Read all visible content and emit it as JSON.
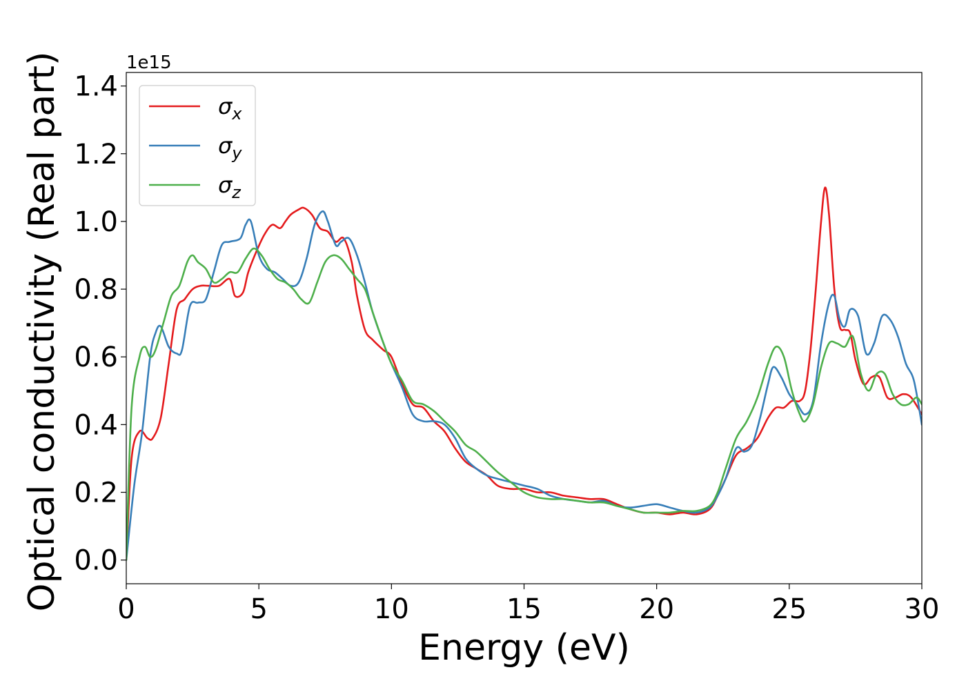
{
  "chart_data": {
    "type": "line",
    "title": "",
    "xlabel": "Energy (eV)",
    "ylabel": "Optical conductivity (Real part)",
    "y_offset_label": "1e15",
    "xlim": [
      0,
      30
    ],
    "ylim": [
      -0.07,
      1.44
    ],
    "xticks": [
      0,
      5,
      10,
      15,
      20,
      25,
      30
    ],
    "xtick_labels": [
      "0",
      "5",
      "10",
      "15",
      "20",
      "25",
      "30"
    ],
    "yticks": [
      0.0,
      0.2,
      0.4,
      0.6,
      0.8,
      1.0,
      1.2,
      1.4
    ],
    "ytick_labels": [
      "0.0",
      "0.2",
      "0.4",
      "0.6",
      "0.8",
      "1.0",
      "1.2",
      "1.4"
    ],
    "grid": false,
    "legend_position": "top-left",
    "series": [
      {
        "name": "σx",
        "base": "σ",
        "sub": "x",
        "color": "#e41a1c",
        "x": [
          0,
          0.2,
          0.5,
          0.8,
          1.0,
          1.3,
          1.6,
          1.9,
          2.2,
          2.5,
          2.8,
          3.1,
          3.5,
          3.9,
          4.1,
          4.4,
          4.6,
          4.9,
          5.2,
          5.5,
          5.8,
          6.0,
          6.2,
          6.5,
          6.7,
          7.0,
          7.3,
          7.6,
          7.9,
          8.2,
          8.5,
          8.7,
          9.0,
          9.3,
          9.7,
          10.0,
          10.4,
          10.8,
          11.2,
          11.6,
          12.0,
          12.4,
          12.8,
          13.2,
          13.6,
          14.0,
          14.5,
          15.0,
          15.5,
          16.0,
          16.5,
          17.0,
          17.5,
          18.0,
          18.5,
          19.0,
          19.5,
          20.0,
          20.5,
          21.0,
          21.5,
          22.0,
          22.3,
          22.6,
          23.0,
          23.4,
          23.8,
          24.2,
          24.5,
          24.8,
          25.1,
          25.4,
          25.6,
          25.8,
          26.0,
          26.2,
          26.35,
          26.5,
          26.7,
          26.9,
          27.1,
          27.3,
          27.5,
          27.8,
          28.1,
          28.4,
          28.7,
          29.0,
          29.3,
          29.6,
          30.0
        ],
        "y": [
          0.0,
          0.3,
          0.38,
          0.36,
          0.36,
          0.42,
          0.58,
          0.74,
          0.77,
          0.8,
          0.81,
          0.81,
          0.81,
          0.83,
          0.78,
          0.79,
          0.85,
          0.91,
          0.96,
          0.99,
          0.98,
          1.0,
          1.02,
          1.035,
          1.04,
          1.02,
          0.98,
          0.97,
          0.94,
          0.95,
          0.88,
          0.78,
          0.68,
          0.65,
          0.62,
          0.6,
          0.52,
          0.46,
          0.45,
          0.41,
          0.38,
          0.33,
          0.29,
          0.27,
          0.25,
          0.22,
          0.21,
          0.21,
          0.2,
          0.2,
          0.19,
          0.185,
          0.18,
          0.18,
          0.165,
          0.15,
          0.14,
          0.14,
          0.135,
          0.14,
          0.135,
          0.15,
          0.19,
          0.24,
          0.31,
          0.33,
          0.36,
          0.42,
          0.45,
          0.45,
          0.47,
          0.47,
          0.5,
          0.62,
          0.8,
          1.0,
          1.1,
          1.02,
          0.8,
          0.69,
          0.68,
          0.67,
          0.59,
          0.52,
          0.54,
          0.54,
          0.48,
          0.48,
          0.49,
          0.48,
          0.43
        ]
      },
      {
        "name": "σy",
        "base": "σ",
        "sub": "y",
        "color": "#377eb8",
        "x": [
          0,
          0.3,
          0.6,
          0.9,
          1.1,
          1.3,
          1.6,
          1.9,
          2.1,
          2.4,
          2.7,
          3.0,
          3.3,
          3.6,
          3.9,
          4.3,
          4.5,
          4.7,
          5.0,
          5.3,
          5.6,
          5.9,
          6.2,
          6.5,
          6.8,
          7.1,
          7.4,
          7.6,
          7.9,
          8.1,
          8.4,
          8.7,
          9.0,
          9.3,
          9.7,
          10.0,
          10.4,
          10.8,
          11.2,
          11.6,
          12.0,
          12.4,
          12.8,
          13.2,
          13.6,
          14.0,
          14.5,
          15.0,
          15.5,
          16.0,
          16.5,
          17.0,
          17.5,
          18.0,
          18.5,
          19.0,
          19.5,
          20.0,
          20.5,
          21.0,
          21.5,
          22.0,
          22.3,
          22.6,
          23.0,
          23.3,
          23.6,
          23.9,
          24.2,
          24.4,
          24.7,
          25.0,
          25.3,
          25.6,
          25.9,
          26.2,
          26.5,
          26.7,
          26.9,
          27.1,
          27.3,
          27.6,
          27.9,
          28.2,
          28.5,
          28.8,
          29.1,
          29.4,
          29.7,
          30.0
        ],
        "y": [
          0.0,
          0.22,
          0.38,
          0.6,
          0.67,
          0.69,
          0.63,
          0.61,
          0.62,
          0.75,
          0.76,
          0.77,
          0.85,
          0.93,
          0.94,
          0.95,
          0.99,
          1.0,
          0.9,
          0.86,
          0.85,
          0.83,
          0.81,
          0.82,
          0.89,
          0.99,
          1.03,
          1.0,
          0.93,
          0.94,
          0.95,
          0.9,
          0.82,
          0.73,
          0.64,
          0.58,
          0.51,
          0.43,
          0.41,
          0.41,
          0.4,
          0.36,
          0.3,
          0.27,
          0.25,
          0.24,
          0.23,
          0.22,
          0.21,
          0.19,
          0.18,
          0.175,
          0.17,
          0.175,
          0.16,
          0.155,
          0.16,
          0.165,
          0.155,
          0.145,
          0.14,
          0.155,
          0.19,
          0.24,
          0.33,
          0.32,
          0.34,
          0.42,
          0.52,
          0.57,
          0.54,
          0.49,
          0.46,
          0.43,
          0.47,
          0.64,
          0.76,
          0.78,
          0.71,
          0.69,
          0.74,
          0.72,
          0.61,
          0.64,
          0.72,
          0.71,
          0.66,
          0.58,
          0.53,
          0.4
        ]
      },
      {
        "name": "σz",
        "base": "σ",
        "sub": "z",
        "color": "#4daf4a",
        "x": [
          0,
          0.2,
          0.5,
          0.7,
          0.9,
          1.1,
          1.4,
          1.7,
          2.0,
          2.3,
          2.5,
          2.7,
          3.0,
          3.3,
          3.6,
          3.9,
          4.2,
          4.5,
          4.8,
          5.1,
          5.4,
          5.7,
          6.0,
          6.3,
          6.6,
          6.9,
          7.2,
          7.5,
          7.8,
          8.1,
          8.4,
          8.7,
          9.0,
          9.3,
          9.7,
          10.0,
          10.4,
          10.8,
          11.2,
          11.6,
          12.0,
          12.4,
          12.8,
          13.2,
          13.6,
          14.0,
          14.5,
          15.0,
          15.5,
          16.0,
          16.5,
          17.0,
          17.5,
          18.0,
          18.5,
          19.0,
          19.5,
          20.0,
          20.5,
          21.0,
          21.5,
          22.0,
          22.3,
          22.6,
          23.0,
          23.4,
          23.8,
          24.2,
          24.5,
          24.8,
          25.1,
          25.4,
          25.6,
          25.9,
          26.2,
          26.5,
          26.8,
          27.1,
          27.4,
          27.7,
          28.0,
          28.3,
          28.6,
          28.9,
          29.2,
          29.5,
          29.8,
          30.0
        ],
        "y": [
          0.0,
          0.45,
          0.6,
          0.63,
          0.6,
          0.62,
          0.7,
          0.78,
          0.81,
          0.88,
          0.9,
          0.88,
          0.86,
          0.82,
          0.83,
          0.85,
          0.85,
          0.89,
          0.92,
          0.9,
          0.86,
          0.83,
          0.82,
          0.8,
          0.77,
          0.76,
          0.82,
          0.88,
          0.9,
          0.89,
          0.86,
          0.83,
          0.8,
          0.73,
          0.64,
          0.58,
          0.53,
          0.47,
          0.46,
          0.44,
          0.41,
          0.38,
          0.34,
          0.32,
          0.29,
          0.26,
          0.23,
          0.2,
          0.185,
          0.18,
          0.18,
          0.175,
          0.17,
          0.17,
          0.16,
          0.15,
          0.14,
          0.14,
          0.14,
          0.145,
          0.145,
          0.16,
          0.2,
          0.27,
          0.36,
          0.41,
          0.48,
          0.58,
          0.63,
          0.6,
          0.5,
          0.43,
          0.41,
          0.46,
          0.57,
          0.64,
          0.64,
          0.63,
          0.66,
          0.55,
          0.5,
          0.55,
          0.55,
          0.49,
          0.46,
          0.46,
          0.48,
          0.46
        ]
      }
    ]
  }
}
